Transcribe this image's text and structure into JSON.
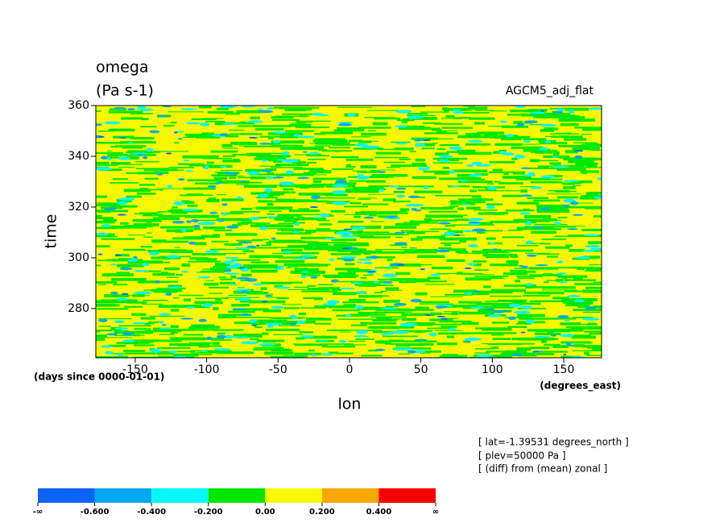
{
  "chart_data": {
    "type": "hovmoller",
    "title": "omega",
    "units": "(Pa s-1)",
    "dataset": "AGCM5_adj_flat",
    "x_label": "lon",
    "y_label": "time",
    "x_units": "(degrees_east)",
    "y_units": "(days since 0000-01-01)",
    "xlim": [
      -177.6,
      176.5
    ],
    "xticks": [
      -150,
      -100,
      -50,
      0,
      50,
      100,
      150
    ],
    "ylim": [
      260.6,
      360
    ],
    "yticks": [
      280,
      300,
      320,
      340,
      360
    ],
    "notes": [
      "[ lat=-1.39531 degrees_north ]",
      "[ plev=50000 Pa ]",
      "[ (diff) from (mean) zonal ]"
    ],
    "colorbar": {
      "labels": [
        "-∞",
        "-0.600",
        "-0.400",
        "-0.200",
        "0.00",
        "0.200",
        "0.400",
        "∞"
      ],
      "colors": [
        "#0a64f5",
        "#00a8f0",
        "#00f8f8",
        "#00e800",
        "#f8f800",
        "#f8a800",
        "#f80000"
      ]
    }
  }
}
